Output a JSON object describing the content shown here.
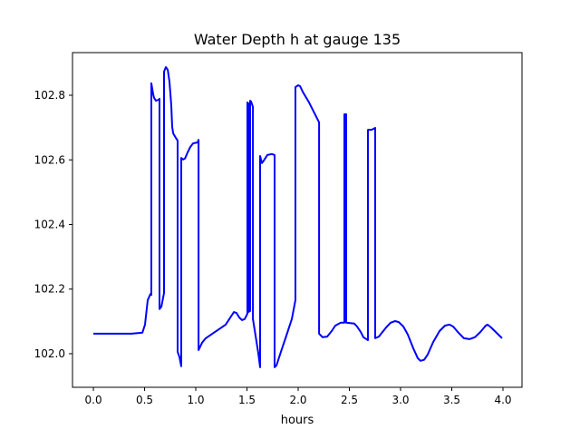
{
  "chart_data": {
    "type": "line",
    "title": "Water Depth h at gauge 135",
    "xlabel": "hours",
    "ylabel": "",
    "xlim": [
      -0.204,
      4.186
    ],
    "ylim": [
      101.896,
      102.932
    ],
    "xticks": [
      0.0,
      0.5,
      1.0,
      1.5,
      2.0,
      2.5,
      3.0,
      3.5,
      4.0
    ],
    "xtick_labels": [
      "0.0",
      "0.5",
      "1.0",
      "1.5",
      "2.0",
      "2.5",
      "3.0",
      "3.5",
      "4.0"
    ],
    "yticks": [
      102.0,
      102.2,
      102.4,
      102.6,
      102.8
    ],
    "ytick_labels": [
      "102.0",
      "102.2",
      "102.4",
      "102.6",
      "102.8"
    ],
    "grid": false,
    "series": [
      {
        "name": "h",
        "color": "#0000ff",
        "x": [
          0.0,
          0.372,
          0.478,
          0.504,
          0.531,
          0.558,
          0.566,
          0.566,
          0.584,
          0.593,
          0.611,
          0.637,
          0.646,
          0.646,
          0.664,
          0.69,
          0.69,
          0.708,
          0.726,
          0.743,
          0.761,
          0.77,
          0.779,
          0.805,
          0.823,
          0.823,
          0.841,
          0.858,
          0.858,
          0.876,
          0.894,
          0.92,
          0.947,
          0.973,
          1.018,
          1.027,
          1.027,
          1.062,
          1.097,
          1.292,
          1.327,
          1.372,
          1.398,
          1.425,
          1.451,
          1.478,
          1.504,
          1.504,
          1.513,
          1.513,
          1.531,
          1.531,
          1.54,
          1.558,
          1.558,
          1.584,
          1.611,
          1.628,
          1.628,
          1.646,
          1.664,
          1.699,
          1.743,
          1.77,
          1.77,
          1.788,
          1.832,
          1.885,
          1.938,
          1.973,
          1.973,
          2.0,
          2.018,
          2.044,
          2.106,
          2.204,
          2.204,
          2.239,
          2.283,
          2.327,
          2.363,
          2.416,
          2.451,
          2.451,
          2.469,
          2.469,
          2.549,
          2.575,
          2.611,
          2.637,
          2.681,
          2.681,
          2.717,
          2.752,
          2.752,
          2.788,
          2.823,
          2.858,
          2.903,
          2.947,
          2.982,
          3.027,
          3.071,
          3.124,
          3.168,
          3.195,
          3.23,
          3.265,
          3.319,
          3.381,
          3.434,
          3.478,
          3.513,
          3.566,
          3.619,
          3.673,
          3.726,
          3.779,
          3.832,
          3.85,
          3.885,
          3.991
        ],
        "y": [
          102.062,
          102.062,
          102.065,
          102.09,
          102.166,
          102.185,
          102.182,
          102.837,
          102.803,
          102.792,
          102.783,
          102.786,
          102.789,
          102.138,
          102.146,
          102.188,
          102.873,
          102.887,
          102.879,
          102.842,
          102.769,
          102.702,
          102.682,
          102.668,
          102.66,
          102.006,
          101.989,
          101.961,
          102.606,
          102.601,
          102.604,
          102.623,
          102.64,
          102.651,
          102.654,
          102.662,
          102.011,
          102.034,
          102.048,
          102.09,
          102.107,
          102.129,
          102.126,
          102.112,
          102.104,
          102.107,
          102.124,
          102.778,
          102.775,
          102.129,
          102.132,
          102.783,
          102.781,
          102.764,
          102.107,
          102.056,
          102.0,
          101.958,
          102.612,
          102.59,
          102.598,
          102.615,
          102.618,
          102.615,
          101.958,
          101.964,
          102.006,
          102.056,
          102.107,
          102.166,
          102.825,
          102.831,
          102.828,
          102.811,
          102.778,
          102.716,
          102.062,
          102.051,
          102.053,
          102.07,
          102.087,
          102.096,
          102.096,
          102.741,
          102.741,
          102.096,
          102.093,
          102.084,
          102.067,
          102.051,
          102.042,
          102.693,
          102.693,
          102.699,
          102.048,
          102.053,
          102.067,
          102.081,
          102.096,
          102.101,
          102.098,
          102.084,
          102.059,
          102.017,
          101.986,
          101.978,
          101.981,
          101.997,
          102.036,
          102.07,
          102.087,
          102.09,
          102.084,
          102.065,
          102.048,
          102.045,
          102.051,
          102.067,
          102.087,
          102.09,
          102.081,
          102.048
        ]
      }
    ]
  }
}
